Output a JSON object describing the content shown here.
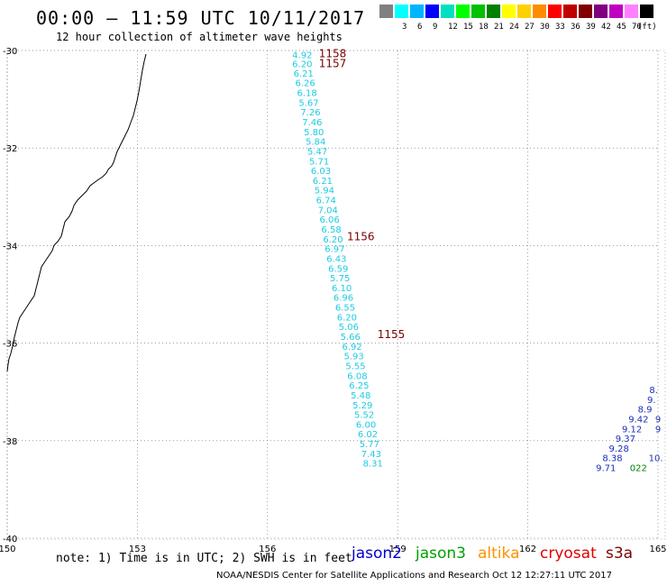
{
  "header": {
    "title": "00:00 – 11:59 UTC 10/11/2017",
    "subtitle": "12 hour collection of altimeter wave heights"
  },
  "legend": {
    "unit": "(ft)",
    "bins": [
      {
        "label": "",
        "color": "#808080"
      },
      {
        "label": "3",
        "color": "#00ffff"
      },
      {
        "label": "6",
        "color": "#00b4ff"
      },
      {
        "label": "9",
        "color": "#0000ff"
      },
      {
        "label": "12",
        "color": "#00e0c0"
      },
      {
        "label": "15",
        "color": "#00ff00"
      },
      {
        "label": "18",
        "color": "#00c000"
      },
      {
        "label": "21",
        "color": "#008000"
      },
      {
        "label": "24",
        "color": "#ffff00"
      },
      {
        "label": "27",
        "color": "#ffd000"
      },
      {
        "label": "30",
        "color": "#ff8c00"
      },
      {
        "label": "33",
        "color": "#ff0000"
      },
      {
        "label": "36",
        "color": "#c00000"
      },
      {
        "label": "39",
        "color": "#800000"
      },
      {
        "label": "42",
        "color": "#800080"
      },
      {
        "label": "45",
        "color": "#c000c0"
      },
      {
        "label": "70",
        "color": "#ff80ff"
      },
      {
        "label": "",
        "color": "#000000"
      }
    ]
  },
  "map": {
    "lat_ticks": [
      "-30",
      "-32",
      "-34",
      "-36",
      "-38",
      "-40"
    ],
    "lon_ticks": [
      "150",
      "153",
      "156",
      "159",
      "162",
      "165"
    ],
    "lat_range": [
      -40,
      -30
    ],
    "lon_range": [
      150,
      165
    ],
    "track_color": "#1ecbe1",
    "track_east_color": "#1a2fb5",
    "time_color": "#7a0000",
    "track": [
      {
        "lat": -30.08,
        "lon": 156.8,
        "swh": "4.92"
      },
      {
        "lat": -30.27,
        "lon": 156.8,
        "swh": "6.20"
      },
      {
        "lat": -30.46,
        "lon": 156.83,
        "swh": "6.21"
      },
      {
        "lat": -30.66,
        "lon": 156.87,
        "swh": "6.26"
      },
      {
        "lat": -30.86,
        "lon": 156.91,
        "swh": "6.18"
      },
      {
        "lat": -31.06,
        "lon": 156.95,
        "swh": "5.67"
      },
      {
        "lat": -31.26,
        "lon": 156.99,
        "swh": "7.26"
      },
      {
        "lat": -31.46,
        "lon": 157.03,
        "swh": "7.46"
      },
      {
        "lat": -31.66,
        "lon": 157.07,
        "swh": "5.80"
      },
      {
        "lat": -31.86,
        "lon": 157.11,
        "swh": "5.84"
      },
      {
        "lat": -32.06,
        "lon": 157.15,
        "swh": "5.47"
      },
      {
        "lat": -32.26,
        "lon": 157.19,
        "swh": "5.71"
      },
      {
        "lat": -32.46,
        "lon": 157.23,
        "swh": "6.03"
      },
      {
        "lat": -32.66,
        "lon": 157.27,
        "swh": "6.21"
      },
      {
        "lat": -32.86,
        "lon": 157.31,
        "swh": "5.94"
      },
      {
        "lat": -33.06,
        "lon": 157.35,
        "swh": "6.74"
      },
      {
        "lat": -33.26,
        "lon": 157.39,
        "swh": "7.04"
      },
      {
        "lat": -33.46,
        "lon": 157.43,
        "swh": "6.06"
      },
      {
        "lat": -33.66,
        "lon": 157.47,
        "swh": "6.58"
      },
      {
        "lat": -33.86,
        "lon": 157.51,
        "swh": "6.20"
      },
      {
        "lat": -34.06,
        "lon": 157.55,
        "swh": "6.97"
      },
      {
        "lat": -34.26,
        "lon": 157.59,
        "swh": "6.43"
      },
      {
        "lat": -34.46,
        "lon": 157.63,
        "swh": "6.59"
      },
      {
        "lat": -34.66,
        "lon": 157.67,
        "swh": "5.75"
      },
      {
        "lat": -34.86,
        "lon": 157.71,
        "swh": "6.10"
      },
      {
        "lat": -35.06,
        "lon": 157.75,
        "swh": "6.96"
      },
      {
        "lat": -35.26,
        "lon": 157.79,
        "swh": "6.55"
      },
      {
        "lat": -35.46,
        "lon": 157.83,
        "swh": "6.20"
      },
      {
        "lat": -35.66,
        "lon": 157.87,
        "swh": "5.06"
      },
      {
        "lat": -35.86,
        "lon": 157.91,
        "swh": "5.66"
      },
      {
        "lat": -36.06,
        "lon": 157.95,
        "swh": "6.92"
      },
      {
        "lat": -36.26,
        "lon": 157.99,
        "swh": "5.93"
      },
      {
        "lat": -36.46,
        "lon": 158.03,
        "swh": "5.55"
      },
      {
        "lat": -36.66,
        "lon": 158.07,
        "swh": "6.08"
      },
      {
        "lat": -36.86,
        "lon": 158.11,
        "swh": "6.25"
      },
      {
        "lat": -37.06,
        "lon": 158.15,
        "swh": "5.48"
      },
      {
        "lat": -37.26,
        "lon": 158.19,
        "swh": "5.29"
      },
      {
        "lat": -37.46,
        "lon": 158.23,
        "swh": "5.52"
      },
      {
        "lat": -37.66,
        "lon": 158.27,
        "swh": "6.00"
      },
      {
        "lat": -37.86,
        "lon": 158.31,
        "swh": "6.02"
      },
      {
        "lat": -38.06,
        "lon": 158.35,
        "swh": "5.77"
      },
      {
        "lat": -38.26,
        "lon": 158.39,
        "swh": "7.43"
      },
      {
        "lat": -38.46,
        "lon": 158.43,
        "swh": "8.31"
      }
    ],
    "time_labels": [
      {
        "lat": -30.05,
        "lon": 157.5,
        "text": "1158"
      },
      {
        "lat": -30.25,
        "lon": 157.5,
        "text": "1157"
      },
      {
        "lat": -33.8,
        "lon": 158.15,
        "text": "1156"
      },
      {
        "lat": -35.8,
        "lon": 158.85,
        "text": "1155"
      }
    ],
    "east_track": [
      {
        "lat": -36.95,
        "lon": 164.9,
        "swh": "8."
      },
      {
        "lat": -37.15,
        "lon": 164.85,
        "swh": "9."
      },
      {
        "lat": -37.35,
        "lon": 164.7,
        "swh": "8.9"
      },
      {
        "lat": -37.55,
        "lon": 164.55,
        "swh": "9.42"
      },
      {
        "lat": -37.75,
        "lon": 164.4,
        "swh": "9.12"
      },
      {
        "lat": -37.95,
        "lon": 164.25,
        "swh": "9.37"
      },
      {
        "lat": -38.15,
        "lon": 164.1,
        "swh": "9.28"
      },
      {
        "lat": -38.35,
        "lon": 163.95,
        "swh": "8.38"
      },
      {
        "lat": -38.55,
        "lon": 163.8,
        "swh": "9.71"
      }
    ],
    "east_extra": [
      {
        "lat": -37.55,
        "lon": 165.0,
        "text": "9",
        "color": "#1a2fb5"
      },
      {
        "lat": -37.75,
        "lon": 165.0,
        "text": "9",
        "color": "#1a2fb5"
      },
      {
        "lat": -38.35,
        "lon": 164.95,
        "text": "10.",
        "color": "#1a2fb5"
      },
      {
        "lat": -38.55,
        "lon": 164.55,
        "text": "022",
        "color": "#008000"
      }
    ]
  },
  "footer": {
    "note": "note: 1) Time is in UTC; 2) SWH is in feet",
    "satellites": [
      {
        "name": "jason2",
        "color": "#0000d0"
      },
      {
        "name": "jason3",
        "color": "#00a000"
      },
      {
        "name": "altika",
        "color": "#ff9000"
      },
      {
        "name": "cryosat",
        "color": "#e00000"
      },
      {
        "name": "s3a",
        "color": "#800000"
      }
    ],
    "credit": "NOAA/NESDIS Center for Satellite Applications and Research    Oct 12 12:27:11 UTC 2017"
  }
}
